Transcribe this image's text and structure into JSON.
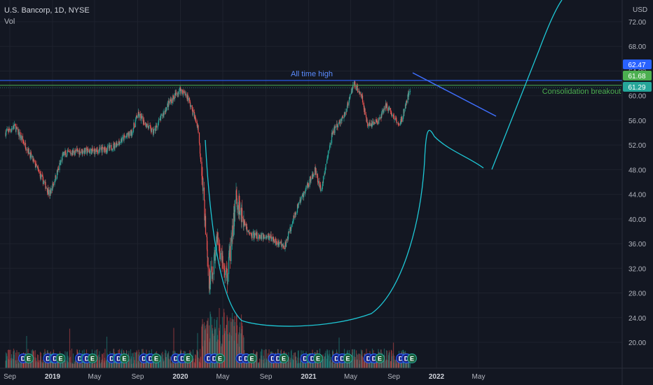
{
  "header": {
    "title": "U.S. Bancorp, 1D, NYSE",
    "volume_label": "Vol"
  },
  "colors": {
    "background": "#131722",
    "up": "#26a69a",
    "down": "#ef5350",
    "grid": "#1e222d",
    "axis_text": "#b2b5be",
    "ath_line": "#2962ff",
    "consolidation_line": "#4caf50",
    "cup_curve": "#1ec8d6",
    "trend_line": "#3f6fff",
    "label_ath_bg": "#2962ff",
    "label_consol_bg": "#4caf50",
    "label_price_bg": "#26a69a"
  },
  "chart_data": {
    "type": "candlestick",
    "currency": "USD",
    "y_ticks": [
      "72.00",
      "68.00",
      "64.00",
      "60.00",
      "56.00",
      "52.00",
      "48.00",
      "44.00",
      "40.00",
      "36.00",
      "32.00",
      "28.00",
      "24.00",
      "20.00"
    ],
    "x_ticks": [
      "Sep",
      "2019",
      "May",
      "Sep",
      "2020",
      "May",
      "Sep",
      "2021",
      "May",
      "Sep",
      "2022",
      "May"
    ],
    "ylim": [
      17.5,
      75
    ],
    "grid": true,
    "price_labels": [
      {
        "value": "62.47",
        "role": "all-time-high"
      },
      {
        "value": "61.68",
        "role": "consolidation"
      },
      {
        "value": "61.29",
        "role": "last-price"
      }
    ],
    "annotations": [
      {
        "name": "ath-line",
        "text": "All time high",
        "price": 62.47
      },
      {
        "name": "consolidation-line",
        "text": "Consolidation breakout",
        "price": 61.68
      }
    ],
    "price_path": [
      [
        "2018-08-20",
        54.0
      ],
      [
        "2018-09-15",
        55.0
      ],
      [
        "2018-10-20",
        51.5
      ],
      [
        "2018-12-24",
        44.0
      ],
      [
        "2019-02-01",
        50.5
      ],
      [
        "2019-03-15",
        51.0
      ],
      [
        "2019-05-01",
        51.0
      ],
      [
        "2019-06-15",
        51.5
      ],
      [
        "2019-08-15",
        54.0
      ],
      [
        "2019-09-01",
        57.0
      ],
      [
        "2019-10-15",
        54.0
      ],
      [
        "2019-12-01",
        59.0
      ],
      [
        "2019-12-31",
        61.0
      ],
      [
        "2020-01-20",
        60.0
      ],
      [
        "2020-02-20",
        55.0
      ],
      [
        "2020-03-06",
        45.0
      ],
      [
        "2020-03-23",
        29.0
      ],
      [
        "2020-04-15",
        36.5
      ],
      [
        "2020-05-14",
        30.5
      ],
      [
        "2020-06-08",
        43.5
      ],
      [
        "2020-07-15",
        37.5
      ],
      [
        "2020-09-15",
        37.0
      ],
      [
        "2020-10-25",
        35.5
      ],
      [
        "2020-11-30",
        42.0
      ],
      [
        "2021-01-20",
        48.0
      ],
      [
        "2021-02-05",
        44.5
      ],
      [
        "2021-03-10",
        54.0
      ],
      [
        "2021-04-15",
        57.0
      ],
      [
        "2021-05-10",
        62.0
      ],
      [
        "2021-06-01",
        60.0
      ],
      [
        "2021-06-20",
        55.0
      ],
      [
        "2021-07-20",
        56.0
      ],
      [
        "2021-08-10",
        58.5
      ],
      [
        "2021-09-01",
        56.5
      ],
      [
        "2021-09-20",
        55.5
      ],
      [
        "2021-10-05",
        58.5
      ],
      [
        "2021-10-18",
        61.29
      ]
    ],
    "event_markers": [
      {
        "date": "2018-10-17",
        "codes": [
          "D",
          "E"
        ]
      },
      {
        "date": "2018-12-27",
        "codes": [
          "D",
          "E"
        ]
      },
      {
        "date": "2019-01-16",
        "codes": [
          "D",
          "E"
        ]
      },
      {
        "date": "2019-03-28",
        "codes": [
          "D",
          "E"
        ]
      },
      {
        "date": "2019-04-17",
        "codes": [
          "D",
          "E"
        ]
      },
      {
        "date": "2019-06-27",
        "codes": [
          "D",
          "E"
        ]
      },
      {
        "date": "2019-07-17",
        "codes": [
          "D",
          "E"
        ]
      },
      {
        "date": "2019-09-27",
        "codes": [
          "D",
          "E"
        ]
      },
      {
        "date": "2019-10-16",
        "codes": [
          "D",
          "E"
        ]
      },
      {
        "date": "2019-12-27",
        "codes": [
          "D",
          "E"
        ]
      },
      {
        "date": "2020-01-15",
        "codes": [
          "D",
          "E"
        ]
      },
      {
        "date": "2020-03-30",
        "codes": [
          "D",
          "E"
        ]
      },
      {
        "date": "2020-04-15",
        "codes": [
          "D",
          "E"
        ]
      },
      {
        "date": "2020-06-29",
        "codes": [
          "D",
          "E"
        ]
      },
      {
        "date": "2020-07-15",
        "codes": [
          "D",
          "E"
        ]
      },
      {
        "date": "2020-09-29",
        "codes": [
          "D",
          "E"
        ]
      },
      {
        "date": "2020-10-14",
        "codes": [
          "D",
          "E"
        ]
      },
      {
        "date": "2020-12-30",
        "codes": [
          "D",
          "E"
        ]
      },
      {
        "date": "2021-01-20",
        "codes": [
          "D",
          "E"
        ]
      },
      {
        "date": "2021-03-30",
        "codes": [
          "D",
          "E"
        ]
      },
      {
        "date": "2021-04-15",
        "codes": [
          "D",
          "E"
        ]
      },
      {
        "date": "2021-06-29",
        "codes": [
          "D",
          "E"
        ]
      },
      {
        "date": "2021-07-15",
        "codes": [
          "D",
          "E"
        ]
      },
      {
        "date": "2021-09-29",
        "codes": [
          "D",
          "E"
        ]
      },
      {
        "date": "2021-10-15",
        "codes": [
          "D",
          "E"
        ]
      }
    ]
  }
}
